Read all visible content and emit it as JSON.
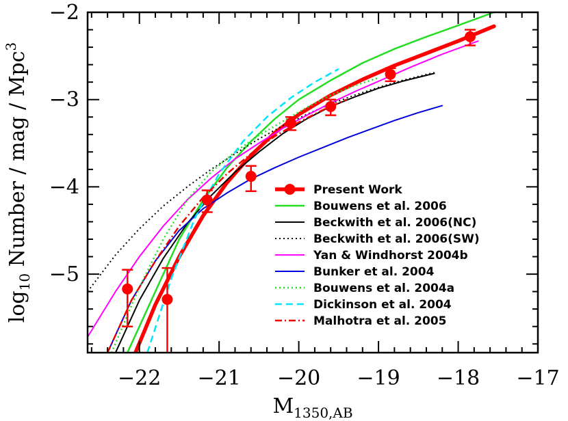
{
  "chart_data": {
    "type": "line",
    "title": "",
    "xlabel": "M",
    "xlabel_sub": "1350,AB",
    "ylabel_part1": "log",
    "ylabel_sub": "10",
    "ylabel_part2": " Number / mag / Mpc",
    "ylabel_sup": "3",
    "xlim": [
      -22.65,
      -17.0
    ],
    "ylim": [
      -5.9,
      -2.0
    ],
    "x_axis_reversed": true,
    "xticks": [
      -22,
      -21,
      -20,
      -19,
      -18,
      -17
    ],
    "xtick_labels": [
      "−22",
      "−21",
      "−20",
      "−19",
      "−18",
      "−17"
    ],
    "yticks": [
      -5,
      -4,
      -3,
      -2
    ],
    "ytick_labels": [
      "−5",
      "−4",
      "−3",
      "−2"
    ],
    "grid": false,
    "legend_placement": "lower-right",
    "points": {
      "name": "Present Work",
      "color": "#ff0000",
      "x": [
        -22.15,
        -21.65,
        -21.15,
        -20.6,
        -20.1,
        -19.6,
        -18.85,
        -17.85
      ],
      "y": [
        -5.17,
        -5.29,
        -4.15,
        -3.88,
        -3.27,
        -3.08,
        -2.71,
        -2.28
      ],
      "err_lo": [
        0.43,
        0.71,
        0.14,
        0.17,
        0.08,
        0.1,
        0.08,
        0.1
      ],
      "err_hi": [
        0.22,
        0.36,
        0.11,
        0.12,
        0.07,
        0.08,
        0.07,
        0.08
      ]
    },
    "series": [
      {
        "name": "Present Work",
        "color": "#ff0000",
        "dash": "solid",
        "width": 5.5,
        "x": [
          -22.05,
          -21.8,
          -21.5,
          -21.2,
          -20.9,
          -20.6,
          -20.3,
          -20.0,
          -19.6,
          -19.2,
          -18.8,
          -18.4,
          -18.0,
          -17.55
        ],
        "y": [
          -5.9,
          -5.35,
          -4.8,
          -4.33,
          -3.95,
          -3.64,
          -3.38,
          -3.17,
          -2.95,
          -2.77,
          -2.61,
          -2.47,
          -2.33,
          -2.16
        ]
      },
      {
        "name": "Bouwens et al. 2006",
        "color": "#22dd22",
        "dash": "solid",
        "width": 2.5,
        "x": [
          -22.15,
          -21.8,
          -21.5,
          -21.2,
          -20.9,
          -20.6,
          -20.3,
          -20.0,
          -19.6,
          -19.2,
          -18.8,
          -18.4,
          -18.0,
          -17.55
        ],
        "y": [
          -5.9,
          -5.2,
          -4.6,
          -4.15,
          -3.78,
          -3.48,
          -3.22,
          -3.0,
          -2.78,
          -2.58,
          -2.42,
          -2.28,
          -2.15,
          -2.0
        ]
      },
      {
        "name": "Beckwith et al. 2006(NC)",
        "color": "#000000",
        "dash": "solid",
        "width": 2,
        "x": [
          -22.3,
          -22.0,
          -21.7,
          -21.4,
          -21.1,
          -20.8,
          -20.5,
          -20.2,
          -19.9,
          -19.6,
          -19.3,
          -19.0,
          -18.7,
          -18.3
        ],
        "y": [
          -5.9,
          -5.3,
          -4.82,
          -4.42,
          -4.1,
          -3.83,
          -3.6,
          -3.39,
          -3.22,
          -3.08,
          -2.97,
          -2.87,
          -2.79,
          -2.7
        ]
      },
      {
        "name": "Beckwith et al. 2006(SW)",
        "color": "#000000",
        "dash": "2,4",
        "width": 2,
        "x": [
          -22.65,
          -22.3,
          -22.0,
          -21.7,
          -21.4,
          -21.1,
          -20.8,
          -20.5,
          -20.2,
          -19.9,
          -19.6,
          -19.3,
          -19.0,
          -18.7,
          -18.3
        ],
        "y": [
          -5.2,
          -4.78,
          -4.48,
          -4.22,
          -4.0,
          -3.8,
          -3.62,
          -3.45,
          -3.3,
          -3.17,
          -3.05,
          -2.95,
          -2.86,
          -2.78,
          -2.69
        ]
      },
      {
        "name": "Yan & Windhorst 2004b",
        "color": "#ff00ff",
        "dash": "solid",
        "width": 2,
        "x": [
          -22.65,
          -22.3,
          -22.0,
          -21.7,
          -21.4,
          -21.1,
          -20.8,
          -20.5,
          -20.2,
          -19.9,
          -19.6,
          -19.3,
          -19.0,
          -18.6,
          -18.2,
          -17.75
        ],
        "y": [
          -5.72,
          -5.2,
          -4.8,
          -4.45,
          -4.15,
          -3.9,
          -3.68,
          -3.5,
          -3.33,
          -3.18,
          -3.04,
          -2.91,
          -2.79,
          -2.63,
          -2.48,
          -2.33
        ]
      },
      {
        "name": "Bunker et al. 2004",
        "color": "#0000dd",
        "dash": "solid",
        "width": 2,
        "x": [
          -22.4,
          -22.1,
          -21.8,
          -21.5,
          -21.2,
          -20.9,
          -20.6,
          -20.3,
          -20.0,
          -19.7,
          -19.4,
          -19.1,
          -18.8,
          -18.5,
          -18.2
        ],
        "y": [
          -5.9,
          -5.3,
          -4.85,
          -4.5,
          -4.25,
          -4.07,
          -3.91,
          -3.78,
          -3.66,
          -3.55,
          -3.44,
          -3.34,
          -3.24,
          -3.15,
          -3.07
        ]
      },
      {
        "name": "Bouwens et al. 2004a",
        "color": "#22dd22",
        "dash": "2,4",
        "width": 2.5,
        "x": [
          -22.35,
          -22.0,
          -21.7,
          -21.4,
          -21.1,
          -20.8,
          -20.5,
          -20.2,
          -19.9,
          -19.6,
          -19.3,
          -19.0
        ],
        "y": [
          -5.9,
          -5.15,
          -4.6,
          -4.15,
          -3.83,
          -3.6,
          -3.41,
          -3.25,
          -3.09,
          -2.95,
          -2.84,
          -2.75
        ]
      },
      {
        "name": "Dickinson et al. 2004",
        "color": "#00e5ff",
        "dash": "10,6",
        "width": 2.5,
        "x": [
          -21.9,
          -21.6,
          -21.3,
          -21.0,
          -20.7,
          -20.4,
          -20.1,
          -19.8,
          -19.5
        ],
        "y": [
          -5.9,
          -5.05,
          -4.35,
          -3.85,
          -3.48,
          -3.2,
          -2.98,
          -2.8,
          -2.65
        ]
      },
      {
        "name": "Malhotra et al. 2005",
        "color": "#ee0000",
        "dash": "10,4,2,4",
        "width": 2.5,
        "x": [
          -22.4,
          -22.1,
          -21.8,
          -21.5,
          -21.2,
          -20.9,
          -20.6,
          -20.3,
          -20.0,
          -19.7,
          -19.4
        ],
        "y": [
          -5.9,
          -5.3,
          -4.85,
          -4.45,
          -4.12,
          -3.85,
          -3.62,
          -3.42,
          -3.26,
          -3.12,
          -3.0
        ]
      }
    ]
  }
}
